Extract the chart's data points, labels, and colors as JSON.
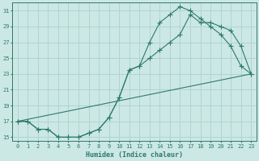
{
  "xlabel": "Humidex (Indice chaleur)",
  "xlim": [
    -0.5,
    23.5
  ],
  "ylim": [
    14.5,
    32
  ],
  "xticks": [
    0,
    1,
    2,
    3,
    4,
    5,
    6,
    7,
    8,
    9,
    10,
    11,
    12,
    13,
    14,
    15,
    16,
    17,
    18,
    19,
    20,
    21,
    22,
    23
  ],
  "yticks": [
    15,
    17,
    19,
    21,
    23,
    25,
    27,
    29,
    31
  ],
  "bg_color": "#cce8e4",
  "line_color": "#2d7a6a",
  "grid_color": "#b0d4d0",
  "line1_x": [
    0,
    1,
    2,
    3,
    4,
    5,
    6,
    7,
    8,
    9,
    10,
    11,
    12,
    13,
    14,
    15,
    16,
    17,
    18,
    19,
    20,
    21,
    22,
    23
  ],
  "line1_y": [
    17,
    17,
    16,
    16,
    15,
    15,
    15,
    15.5,
    16,
    17.5,
    20,
    23.5,
    24,
    27,
    29.5,
    30.5,
    31.5,
    31,
    30,
    29,
    28,
    26.5,
    24,
    23
  ],
  "line2_x": [
    0,
    1,
    2,
    3,
    4,
    5,
    6,
    7,
    8,
    9,
    10,
    11,
    12,
    13,
    14,
    15,
    16,
    17,
    18,
    19,
    20,
    21,
    22,
    23
  ],
  "line2_y": [
    17,
    17,
    16,
    16,
    15,
    15,
    15,
    15.5,
    16,
    17.5,
    20,
    23.5,
    24,
    25,
    26,
    27,
    28,
    30.5,
    29.5,
    29.5,
    29,
    28.5,
    26.5,
    23
  ],
  "line3_x": [
    0,
    23
  ],
  "line3_y": [
    17,
    23
  ]
}
